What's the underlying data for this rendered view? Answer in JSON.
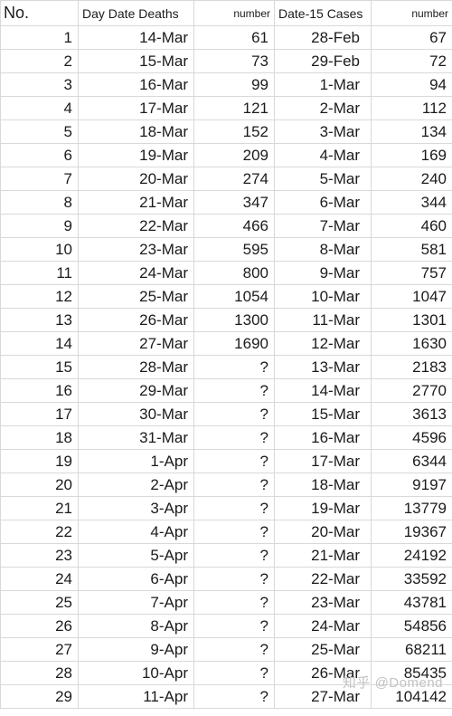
{
  "header": {
    "no": "No.",
    "day_date_deaths": "Day Date Deaths",
    "deaths_number": "number",
    "date15_cases": "Date-15 Cases",
    "cases_number": "number"
  },
  "rows": [
    {
      "no": "1",
      "death_date": "14-Mar",
      "deaths": "61",
      "case_date": "28-Feb",
      "cases": "67"
    },
    {
      "no": "2",
      "death_date": "15-Mar",
      "deaths": "73",
      "case_date": "29-Feb",
      "cases": "72"
    },
    {
      "no": "3",
      "death_date": "16-Mar",
      "deaths": "99",
      "case_date": "1-Mar",
      "cases": "94"
    },
    {
      "no": "4",
      "death_date": "17-Mar",
      "deaths": "121",
      "case_date": "2-Mar",
      "cases": "112"
    },
    {
      "no": "5",
      "death_date": "18-Mar",
      "deaths": "152",
      "case_date": "3-Mar",
      "cases": "134"
    },
    {
      "no": "6",
      "death_date": "19-Mar",
      "deaths": "209",
      "case_date": "4-Mar",
      "cases": "169"
    },
    {
      "no": "7",
      "death_date": "20-Mar",
      "deaths": "274",
      "case_date": "5-Mar",
      "cases": "240"
    },
    {
      "no": "8",
      "death_date": "21-Mar",
      "deaths": "347",
      "case_date": "6-Mar",
      "cases": "344"
    },
    {
      "no": "9",
      "death_date": "22-Mar",
      "deaths": "466",
      "case_date": "7-Mar",
      "cases": "460"
    },
    {
      "no": "10",
      "death_date": "23-Mar",
      "deaths": "595",
      "case_date": "8-Mar",
      "cases": "581"
    },
    {
      "no": "11",
      "death_date": "24-Mar",
      "deaths": "800",
      "case_date": "9-Mar",
      "cases": "757"
    },
    {
      "no": "12",
      "death_date": "25-Mar",
      "deaths": "1054",
      "case_date": "10-Mar",
      "cases": "1047"
    },
    {
      "no": "13",
      "death_date": "26-Mar",
      "deaths": "1300",
      "case_date": "11-Mar",
      "cases": "1301"
    },
    {
      "no": "14",
      "death_date": "27-Mar",
      "deaths": "1690",
      "case_date": "12-Mar",
      "cases": "1630"
    },
    {
      "no": "15",
      "death_date": "28-Mar",
      "deaths": "?",
      "case_date": "13-Mar",
      "cases": "2183"
    },
    {
      "no": "16",
      "death_date": "29-Mar",
      "deaths": "?",
      "case_date": "14-Mar",
      "cases": "2770"
    },
    {
      "no": "17",
      "death_date": "30-Mar",
      "deaths": "?",
      "case_date": "15-Mar",
      "cases": "3613"
    },
    {
      "no": "18",
      "death_date": "31-Mar",
      "deaths": "?",
      "case_date": "16-Mar",
      "cases": "4596"
    },
    {
      "no": "19",
      "death_date": "1-Apr",
      "deaths": "?",
      "case_date": "17-Mar",
      "cases": "6344"
    },
    {
      "no": "20",
      "death_date": "2-Apr",
      "deaths": "?",
      "case_date": "18-Mar",
      "cases": "9197"
    },
    {
      "no": "21",
      "death_date": "3-Apr",
      "deaths": "?",
      "case_date": "19-Mar",
      "cases": "13779"
    },
    {
      "no": "22",
      "death_date": "4-Apr",
      "deaths": "?",
      "case_date": "20-Mar",
      "cases": "19367"
    },
    {
      "no": "23",
      "death_date": "5-Apr",
      "deaths": "?",
      "case_date": "21-Mar",
      "cases": "24192"
    },
    {
      "no": "24",
      "death_date": "6-Apr",
      "deaths": "?",
      "case_date": "22-Mar",
      "cases": "33592"
    },
    {
      "no": "25",
      "death_date": "7-Apr",
      "deaths": "?",
      "case_date": "23-Mar",
      "cases": "43781"
    },
    {
      "no": "26",
      "death_date": "8-Apr",
      "deaths": "?",
      "case_date": "24-Mar",
      "cases": "54856"
    },
    {
      "no": "27",
      "death_date": "9-Apr",
      "deaths": "?",
      "case_date": "25-Mar",
      "cases": "68211"
    },
    {
      "no": "28",
      "death_date": "10-Apr",
      "deaths": "?",
      "case_date": "26-Mar",
      "cases": "85435"
    },
    {
      "no": "29",
      "death_date": "11-Apr",
      "deaths": "?",
      "case_date": "27-Mar",
      "cases": "104142"
    }
  ],
  "watermark": "知乎 @Domend"
}
